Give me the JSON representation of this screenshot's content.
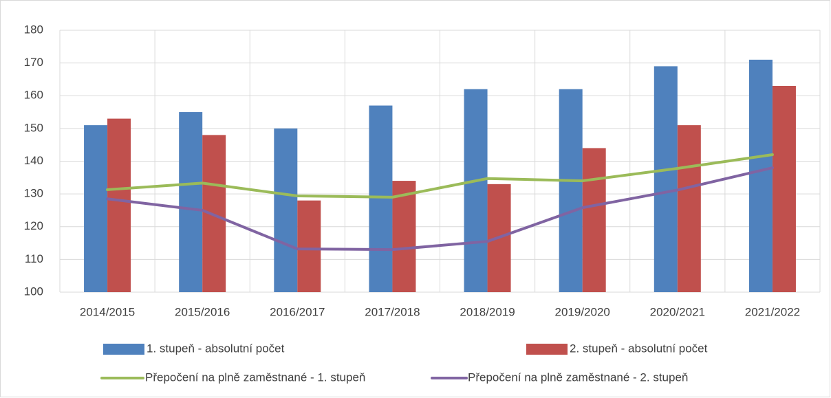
{
  "chart_data": {
    "type": "bar",
    "categories": [
      "2014/2015",
      "2015/2016",
      "2016/2017",
      "2017/2018",
      "2018/2019",
      "2019/2020",
      "2020/2021",
      "2021/2022"
    ],
    "series": [
      {
        "name": "1. stupeň - absolutní počet",
        "type": "bar",
        "color": "#4f81bd",
        "values": [
          151,
          155,
          150,
          157,
          162,
          162,
          169,
          171
        ]
      },
      {
        "name": "2. stupeň - absolutní počet",
        "type": "bar",
        "color": "#c0504d",
        "values": [
          153,
          148,
          128,
          134,
          133,
          144,
          151,
          163
        ]
      },
      {
        "name": "Přepočení na plně zaměstnané - 1. stupeň",
        "type": "line",
        "color": "#9bbb59",
        "values": [
          131.3,
          133.3,
          129.4,
          129,
          134.7,
          134,
          137.8,
          142
        ]
      },
      {
        "name": "Přepočení na plně zaměstnané - 2. stupeň",
        "type": "line",
        "color": "#8064a2",
        "values": [
          128.5,
          125,
          113.2,
          113,
          115.5,
          125.8,
          131.2,
          138
        ]
      }
    ],
    "ylim": [
      100,
      180
    ],
    "yticks": [
      100,
      110,
      120,
      130,
      140,
      150,
      160,
      170,
      180
    ],
    "grid": true,
    "legend": "bottom"
  }
}
